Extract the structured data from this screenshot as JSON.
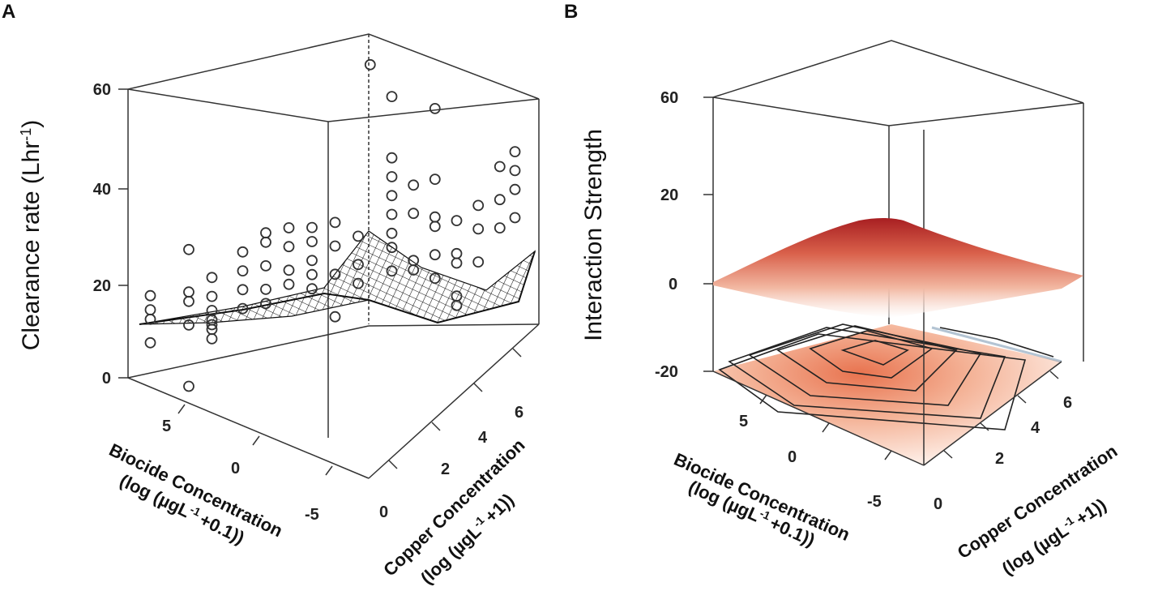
{
  "figure": {
    "panels": [
      {
        "letter": "A"
      },
      {
        "letter": "B"
      }
    ]
  },
  "chart_data": [
    {
      "type": "scatter",
      "panel": "A",
      "title": "",
      "zlabel": "Clearance rate (Lhr",
      "zlabel_sup": "-1",
      "zlabel_end": ")",
      "xlabel_line1": "Biocide Concentration",
      "xlabel_line2_pre": "(log (µgL",
      "xlabel_line2_sup": "-1",
      "xlabel_line2_post": "+0.1))",
      "ylabel_line1": "Copper Concentration",
      "ylabel_line2_pre": "(log (µgL",
      "ylabel_line2_sup": "-1",
      "ylabel_line2_post": "+1))",
      "zticks": [
        "60",
        "40",
        "20",
        "0"
      ],
      "xticks": [
        "5",
        "0",
        "-5"
      ],
      "yticks": [
        "0",
        "2",
        "4",
        "6"
      ],
      "zlim": [
        0,
        60
      ],
      "xlim": [
        -7,
        8
      ],
      "ylim": [
        0,
        7.5
      ],
      "points": [
        {
          "x": 7.5,
          "y": 0.3,
          "z": 17
        },
        {
          "x": 7.5,
          "y": 0.3,
          "z": 14
        },
        {
          "x": 7.5,
          "y": 0.3,
          "z": 12
        },
        {
          "x": 7.5,
          "y": 0.3,
          "z": 7
        },
        {
          "x": 5,
          "y": 0.3,
          "z": 25
        },
        {
          "x": 5,
          "y": 0.3,
          "z": 16
        },
        {
          "x": 5,
          "y": 0.3,
          "z": 14
        },
        {
          "x": 5,
          "y": 0.3,
          "z": 9
        },
        {
          "x": 5,
          "y": 0.3,
          "z": -4
        },
        {
          "x": 3.5,
          "y": 0.3,
          "z": 11
        },
        {
          "x": 3.5,
          "y": 0.3,
          "z": 9
        },
        {
          "x": 3.5,
          "y": 0.3,
          "z": 8
        },
        {
          "x": 3.5,
          "y": 0.3,
          "z": 7
        },
        {
          "x": 3.5,
          "y": 0.3,
          "z": 5
        },
        {
          "x": 3.5,
          "y": 0.3,
          "z": 14
        },
        {
          "x": 3.5,
          "y": 0.3,
          "z": 18
        },
        {
          "x": 1.5,
          "y": 0.3,
          "z": 22
        },
        {
          "x": 1.5,
          "y": 0.3,
          "z": 18
        },
        {
          "x": 1.5,
          "y": 0.3,
          "z": 14
        },
        {
          "x": 1.5,
          "y": 0.3,
          "z": 10
        },
        {
          "x": 0,
          "y": 0.3,
          "z": 25
        },
        {
          "x": 0,
          "y": 0.3,
          "z": 23
        },
        {
          "x": 0,
          "y": 0.3,
          "z": 18
        },
        {
          "x": 0,
          "y": 0.3,
          "z": 13
        },
        {
          "x": 0,
          "y": 0.3,
          "z": 10
        },
        {
          "x": -1.5,
          "y": 0.3,
          "z": 25
        },
        {
          "x": -1.5,
          "y": 0.3,
          "z": 21
        },
        {
          "x": -1.5,
          "y": 0.3,
          "z": 16
        },
        {
          "x": -1.5,
          "y": 0.3,
          "z": 13
        },
        {
          "x": -3,
          "y": 0.3,
          "z": 24
        },
        {
          "x": -3,
          "y": 0.3,
          "z": 21
        },
        {
          "x": -3,
          "y": 0.3,
          "z": 17
        },
        {
          "x": -3,
          "y": 0.3,
          "z": 14
        },
        {
          "x": -3,
          "y": 0.3,
          "z": 11
        },
        {
          "x": -4.5,
          "y": 0.3,
          "z": 24
        },
        {
          "x": -4.5,
          "y": 0.3,
          "z": 19
        },
        {
          "x": -4.5,
          "y": 0.3,
          "z": 13
        },
        {
          "x": -4.5,
          "y": 0.3,
          "z": 4
        },
        {
          "x": -6,
          "y": 0.3,
          "z": 20
        },
        {
          "x": -6,
          "y": 0.3,
          "z": 14
        },
        {
          "x": -6,
          "y": 0.3,
          "z": 10
        },
        {
          "x": -6.5,
          "y": 0.5,
          "z": 56
        },
        {
          "x": -6.5,
          "y": 1.5,
          "z": 49
        },
        {
          "x": -6.5,
          "y": 1.5,
          "z": 36
        },
        {
          "x": -6.5,
          "y": 1.5,
          "z": 32
        },
        {
          "x": -6.5,
          "y": 1.5,
          "z": 28
        },
        {
          "x": -6.5,
          "y": 1.5,
          "z": 24
        },
        {
          "x": -6.5,
          "y": 1.5,
          "z": 20
        },
        {
          "x": -6.5,
          "y": 1.5,
          "z": 17
        },
        {
          "x": -6.5,
          "y": 1.5,
          "z": 12
        },
        {
          "x": -6.5,
          "y": 2.5,
          "z": 30
        },
        {
          "x": -6.5,
          "y": 2.5,
          "z": 24
        },
        {
          "x": -6.5,
          "y": 2.5,
          "z": 14
        },
        {
          "x": -6.5,
          "y": 2.5,
          "z": 12
        },
        {
          "x": -6.5,
          "y": 3.5,
          "z": 46
        },
        {
          "x": -6.5,
          "y": 3.5,
          "z": 31
        },
        {
          "x": -6.5,
          "y": 3.5,
          "z": 23
        },
        {
          "x": -6.5,
          "y": 3.5,
          "z": 21
        },
        {
          "x": -6.5,
          "y": 3.5,
          "z": 15
        },
        {
          "x": -6.5,
          "y": 3.5,
          "z": 10
        },
        {
          "x": -6.5,
          "y": 4.5,
          "z": 22
        },
        {
          "x": -6.5,
          "y": 4.5,
          "z": 15
        },
        {
          "x": -6.5,
          "y": 4.5,
          "z": 13
        },
        {
          "x": -6.5,
          "y": 4.5,
          "z": 6
        },
        {
          "x": -6.5,
          "y": 4.5,
          "z": 4
        },
        {
          "x": -6.5,
          "y": 5.5,
          "z": 25
        },
        {
          "x": -6.5,
          "y": 5.5,
          "z": 20
        },
        {
          "x": -6.5,
          "y": 5.5,
          "z": 13
        },
        {
          "x": -6.5,
          "y": 6.5,
          "z": 33
        },
        {
          "x": -6.5,
          "y": 6.5,
          "z": 26
        },
        {
          "x": -6.5,
          "y": 6.5,
          "z": 20
        },
        {
          "x": -6.5,
          "y": 7.2,
          "z": 36
        },
        {
          "x": -6.5,
          "y": 7.2,
          "z": 32
        },
        {
          "x": -6.5,
          "y": 7.2,
          "z": 28
        },
        {
          "x": -6.5,
          "y": 7.2,
          "z": 22
        }
      ],
      "surface_note": "fitted response surface"
    },
    {
      "type": "surface",
      "panel": "B",
      "zlabel": "Interaction Strength",
      "xlabel_line1": "Biocide Concentration",
      "xlabel_line2_pre": "(log (µgL",
      "xlabel_line2_sup": "-1",
      "xlabel_line2_post": "+0.1))",
      "ylabel_line1": "Copper Concentration",
      "ylabel_line2_pre": "(log (µgL",
      "ylabel_line2_sup": "-1",
      "ylabel_line2_post": "+1))",
      "zticks": [
        "60",
        "20",
        "0",
        "-20"
      ],
      "xticks": [
        "5",
        "0",
        "-5"
      ],
      "yticks": [
        "0",
        "2",
        "4",
        "6"
      ],
      "zlim": [
        -20,
        60
      ],
      "xlim": [
        -7,
        8
      ],
      "ylim": [
        0,
        7.5
      ],
      "surface_peak_z": 12,
      "contour_levels": 7,
      "colors": {
        "high": "#a81f22",
        "mid": "#e8866a",
        "low": "#fdf2ec",
        "contour": "#222222"
      }
    }
  ]
}
